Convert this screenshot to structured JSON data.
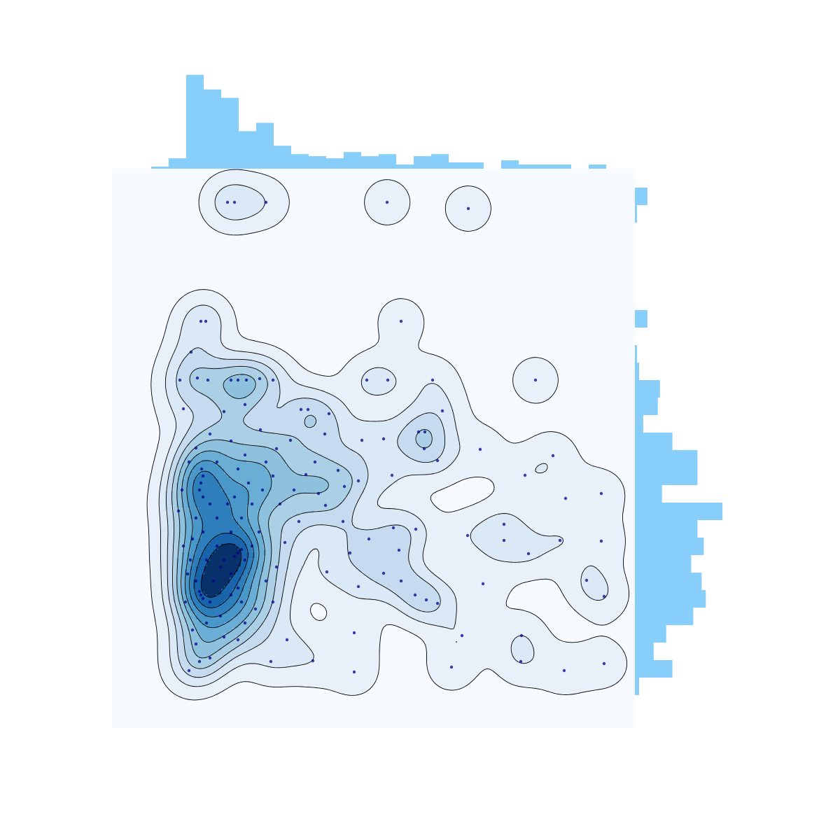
{
  "chart_data": {
    "type": "scatter",
    "kde": true,
    "contour_levels": [
      0.05,
      0.145,
      0.24,
      0.335,
      0.43,
      0.525,
      0.62,
      0.715,
      0.81,
      0.905
    ],
    "contour_colors": [
      "#e8f1fa",
      "#dbe9f6",
      "#c6dbef",
      "#abd0e6",
      "#8dc1dd",
      "#6aaed6",
      "#4a98c9",
      "#2e7ebc",
      "#1764ab",
      "#08306b"
    ],
    "background": "#f7fbff",
    "color": "#00008b",
    "xlim": [
      0,
      747
    ],
    "ylim": [
      0,
      799
    ],
    "x": [
      165,
      175,
      220,
      393,
      509,
      127,
      134,
      413,
      113,
      605,
      97,
      122,
      137,
      170,
      180,
      192,
      211,
      230,
      364,
      394,
      458,
      102,
      160,
      190,
      270,
      280,
      310,
      472,
      212,
      235,
      255,
      304,
      357,
      388,
      438,
      447,
      446,
      465,
      526,
      630,
      590,
      648,
      699,
      434,
      508,
      560,
      560,
      595,
      640,
      699,
      678,
      703,
      703,
      646,
      584,
      585,
      500,
      485,
      346,
      346,
      287,
      227,
      250,
      340,
      307,
      388,
      413,
      433,
      449,
      465,
      530,
      352,
      410,
      402,
      367,
      330,
      305,
      295,
      277,
      290,
      323,
      332,
      352,
      400,
      260,
      240,
      267,
      247,
      235,
      220,
      230,
      205,
      190,
      180,
      160,
      140,
      125,
      110,
      115,
      105,
      120,
      135,
      150,
      170,
      185,
      200,
      215,
      230,
      220,
      190,
      170,
      140,
      120,
      110,
      100,
      95,
      102,
      108,
      130,
      125,
      140,
      150,
      160,
      170,
      180,
      190,
      200,
      210,
      195,
      180,
      150,
      130,
      140,
      155,
      170,
      185,
      127,
      130,
      128,
      180,
      175,
      185,
      127,
      125,
      130,
      120,
      115,
      112,
      145,
      155,
      165,
      175,
      135,
      120
    ],
    "values": [
      751,
      751,
      751,
      751,
      742,
      581,
      581,
      581,
      537,
      497,
      497,
      500,
      497,
      497,
      497,
      497,
      499,
      497,
      497,
      497,
      497,
      456,
      452,
      462,
      455,
      455,
      449,
      453,
      426,
      399,
      411,
      420,
      411,
      413,
      423,
      423,
      399,
      382,
      398,
      389,
      361,
      328,
      335,
      284,
      275,
      291,
      268,
      249,
      268,
      267,
      211,
      188,
      92,
      82,
      95,
      132,
      132,
      87,
      136,
      80,
      96,
      95,
      126,
      250,
      223,
      221,
      210,
      190,
      183,
      178,
      206,
      202,
      254,
      286,
      270,
      295,
      318,
      335,
      362,
      380,
      368,
      345,
      353,
      361,
      340,
      320,
      295,
      265,
      230,
      210,
      180,
      170,
      150,
      126,
      130,
      100,
      95,
      82,
      140,
      180,
      210,
      240,
      260,
      280,
      300,
      320,
      340,
      360,
      380,
      390,
      410,
      420,
      400,
      380,
      340,
      310,
      260,
      220,
      360,
      340,
      320,
      300,
      240,
      220,
      200,
      240,
      260,
      280,
      350,
      370,
      380,
      280,
      180,
      160,
      190,
      180,
      350,
      330,
      370,
      250,
      245,
      255,
      190,
      195,
      185,
      300,
      270,
      240,
      210,
      230,
      320,
      330,
      150,
      120
    ],
    "top_histogram": {
      "color": "#87cefa",
      "ylim": [
        0,
        47
      ],
      "bins": [
        56,
        81,
        106,
        131,
        156,
        181,
        206,
        231,
        256,
        281,
        306,
        331,
        356,
        381,
        406,
        431,
        456,
        481,
        506,
        531,
        556,
        581,
        606,
        631,
        656,
        681,
        706,
        731
      ],
      "counts": [
        1,
        5,
        45,
        38,
        34,
        18,
        22,
        11,
        7,
        6,
        5,
        8,
        6,
        7,
        2,
        6,
        7,
        3,
        3,
        0,
        4,
        2,
        2,
        2,
        0,
        2,
        0
      ]
    },
    "right_histogram": {
      "color": "#87cefa",
      "xlim": [
        0,
        47
      ],
      "bins": [
        47,
        72,
        97,
        122,
        147,
        172,
        197,
        222,
        247,
        272,
        297,
        322,
        347,
        372,
        397,
        422,
        447,
        472,
        497,
        522,
        547,
        572,
        597,
        622,
        647,
        672,
        697,
        722,
        747,
        772
      ],
      "counts": [
        2,
        18,
        9,
        15,
        28,
        34,
        32,
        27,
        33,
        30,
        42,
        13,
        30,
        30,
        18,
        4,
        11,
        12,
        2,
        1,
        0,
        6,
        0,
        0,
        0,
        0,
        0,
        1,
        6
      ]
    }
  }
}
